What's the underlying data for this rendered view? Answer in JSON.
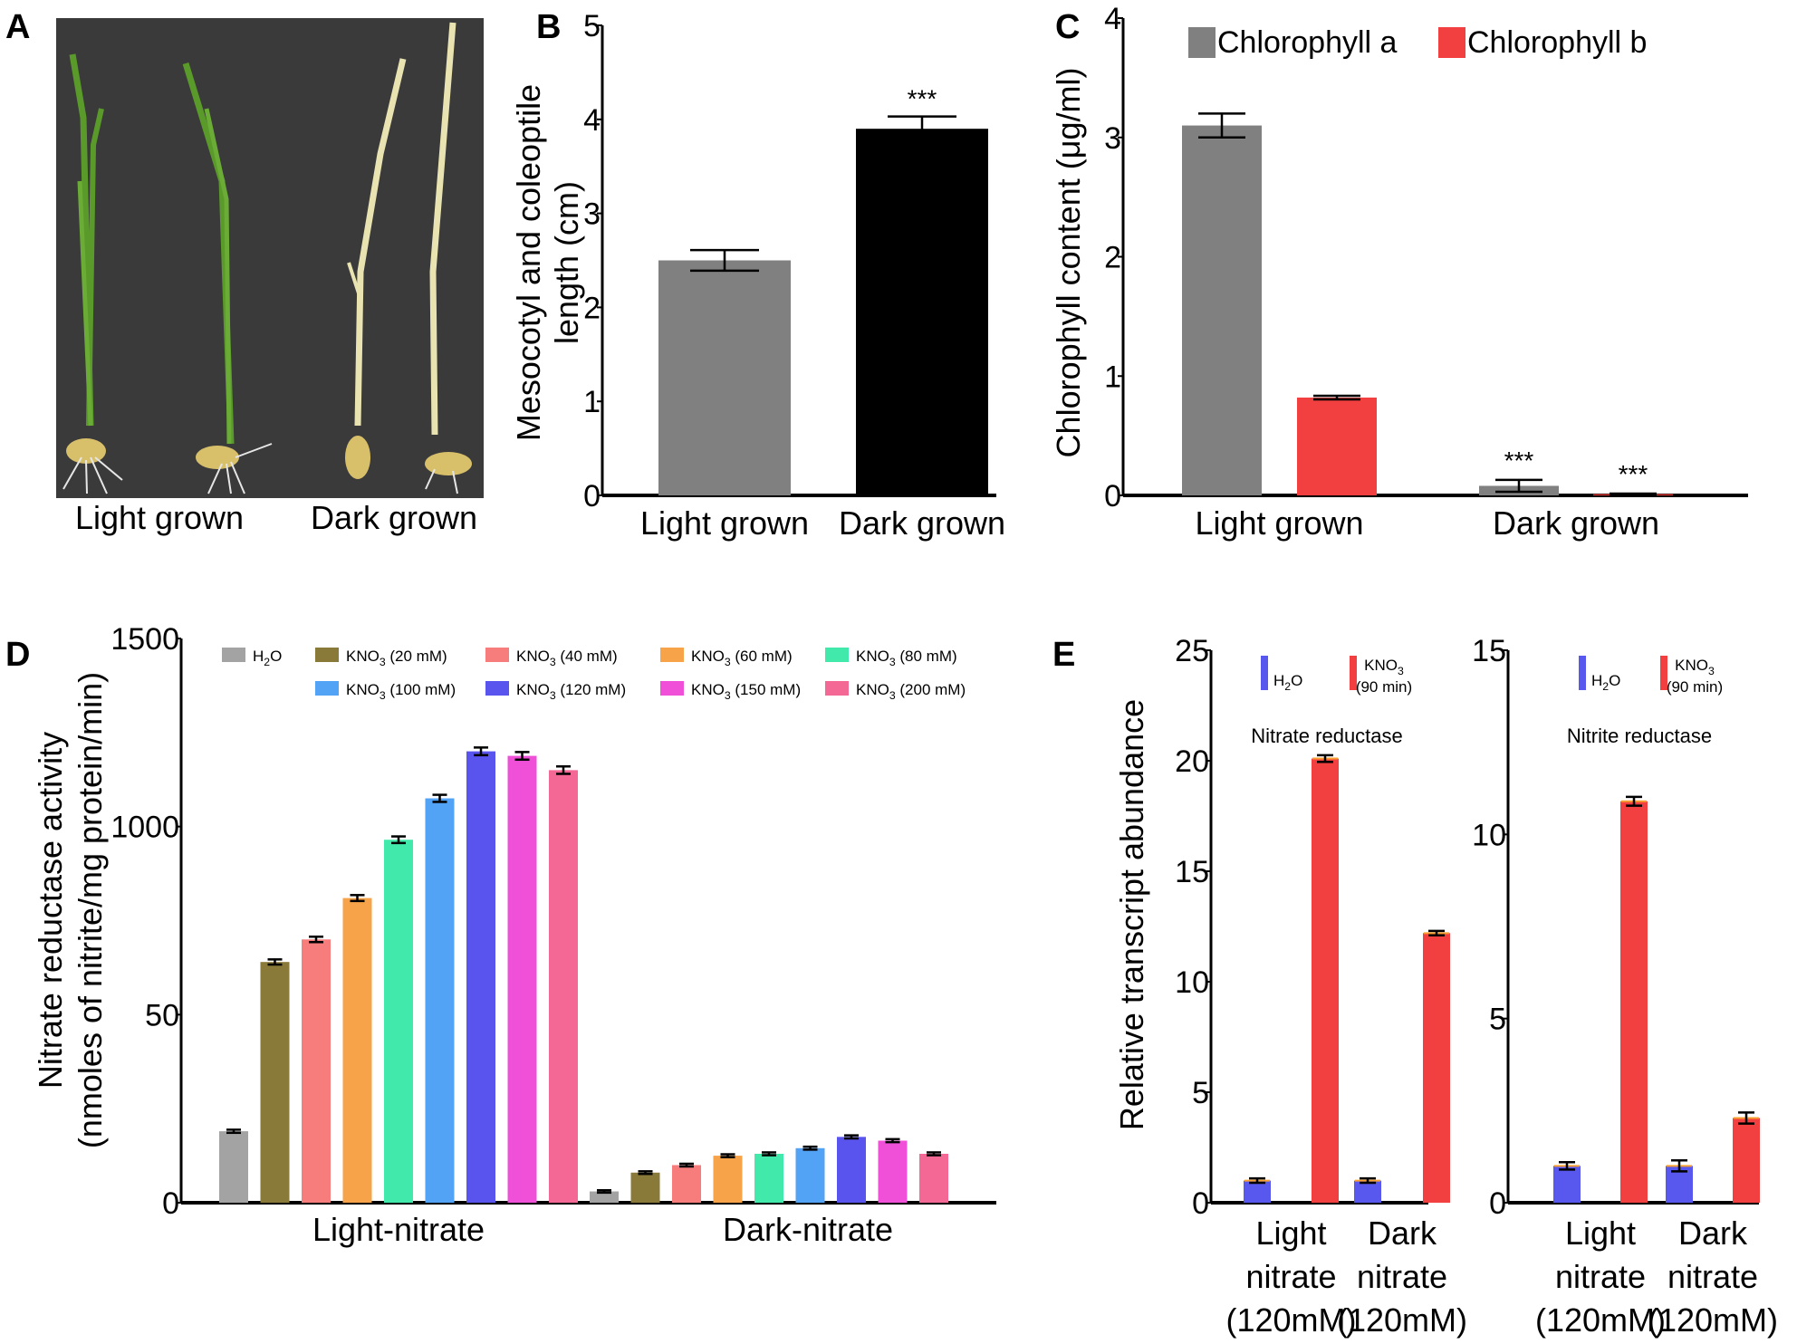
{
  "figure": {
    "panel_letters": [
      "A",
      "B",
      "C",
      "D",
      "E"
    ],
    "photo": {
      "labels": [
        "Light grown",
        "Dark grown"
      ],
      "colors": {
        "background": "#3a3a3a",
        "green_shoot": "#5a9a2a",
        "pale_shoot": "#e8e3b0",
        "seed": "#d8bf6a"
      }
    },
    "colors": {
      "gray": "#808080",
      "black": "#000000",
      "red": "#f23f3f",
      "h2o": "#a3a3a3",
      "kno3_20": "#8a7a3a",
      "kno3_40": "#f77c7c",
      "kno3_60": "#f7a34a",
      "kno3_80": "#41eaaa",
      "kno3_100": "#52a2f5",
      "kno3_120": "#5a54ee",
      "kno3_150": "#f050d8",
      "kno3_200": "#f46896",
      "blue": "#5858ee",
      "orange": "#f7a030"
    }
  },
  "chart_data": [
    {
      "panel": "B",
      "type": "bar",
      "categories": [
        "Light grown",
        "Dark grown"
      ],
      "values": [
        2.5,
        3.9
      ],
      "errors": [
        0.11,
        0.13
      ],
      "colors": [
        "#808080",
        "#000000"
      ],
      "significance": [
        "",
        "***"
      ],
      "ylabel_lines": [
        "Mesocotyl and coleoptile",
        "length (cm)"
      ],
      "ylim": [
        0,
        5
      ],
      "yticks": [
        "0",
        "1",
        "2",
        "3",
        "4",
        "5"
      ]
    },
    {
      "panel": "C",
      "type": "bar",
      "categories": [
        "Light grown",
        "Dark grown"
      ],
      "series": [
        {
          "name": "Chlorophyll a",
          "color": "#808080",
          "values": [
            3.1,
            0.08
          ],
          "errors": [
            0.1,
            0.05
          ],
          "significance": [
            "",
            "***"
          ]
        },
        {
          "name": "Chlorophyll b",
          "color": "#f23f3f",
          "values": [
            0.82,
            0.01
          ],
          "errors": [
            0.015,
            0.005
          ],
          "significance": [
            "",
            "***"
          ]
        }
      ],
      "ylabel": "Chlorophyll content (μg/ml)",
      "ylim": [
        0,
        4
      ],
      "yticks": [
        "0",
        "1",
        "2",
        "3",
        "4"
      ]
    },
    {
      "panel": "D",
      "type": "bar",
      "categories": [
        "Light-nitrate",
        "Dark-nitrate"
      ],
      "series": [
        {
          "name": "H2O",
          "base": "H",
          "sub": "2",
          "rest": "O",
          "color": "#a3a3a3",
          "values": [
            190,
            30
          ]
        },
        {
          "name": "KNO3 (20 mM)",
          "base": "KNO",
          "sub": "3",
          "rest": " (20 mM)",
          "color": "#8a7a3a",
          "values": [
            640,
            80
          ]
        },
        {
          "name": "KNO3 (40 mM)",
          "base": "KNO",
          "sub": "3",
          "rest": " (40 mM)",
          "color": "#f77c7c",
          "values": [
            700,
            100
          ]
        },
        {
          "name": "KNO3 (60 mM)",
          "base": "KNO",
          "sub": "3",
          "rest": " (60 mM)",
          "color": "#f7a34a",
          "values": [
            810,
            125
          ]
        },
        {
          "name": "KNO3 (80 mM)",
          "base": "KNO",
          "sub": "3",
          "rest": " (80 mM)",
          "color": "#41eaaa",
          "values": [
            965,
            130
          ]
        },
        {
          "name": "KNO3 (100 mM)",
          "base": "KNO",
          "sub": "3",
          "rest": " (100 mM)",
          "color": "#52a2f5",
          "values": [
            1075,
            145
          ]
        },
        {
          "name": "KNO3 (120 mM)",
          "base": "KNO",
          "sub": "3",
          "rest": " (120 mM)",
          "color": "#5a54ee",
          "values": [
            1200,
            175
          ]
        },
        {
          "name": "KNO3 (150 mM)",
          "base": "KNO",
          "sub": "3",
          "rest": " (150 mM)",
          "color": "#f050d8",
          "values": [
            1188,
            165
          ]
        },
        {
          "name": "KNO3 (200 mM)",
          "base": "KNO",
          "sub": "3",
          "rest": " (200 mM)",
          "color": "#f46896",
          "values": [
            1150,
            130
          ]
        }
      ],
      "ylabel_lines": [
        "Nitrate reductase activity",
        "(nmoles of nitrite/mg protein/min)"
      ],
      "ylim": [
        0,
        1500
      ],
      "yticks": [
        "0",
        "50",
        "1000",
        "1500"
      ]
    },
    {
      "panel": "E-left",
      "type": "bar",
      "subtitle": "Nitrate reductase",
      "categories": [
        [
          "Light",
          "nitrate",
          "(120mM)"
        ],
        [
          "Dark",
          "nitrate",
          "(120mM)"
        ]
      ],
      "series": [
        {
          "name": "H2O",
          "base": "H",
          "sub": "2",
          "rest": "O",
          "color": "#5858ee",
          "values": [
            1.0,
            1.0
          ],
          "errors": [
            0.1,
            0.1
          ]
        },
        {
          "name": "KNO3 (90 min)",
          "base": "KNO",
          "sub": "3",
          "rest2": "(90 min)",
          "color": "#f23f3f",
          "values": [
            20.1,
            12.2
          ],
          "errors": [
            0.15,
            0.1
          ]
        }
      ],
      "ylabel": "Relative transcript abundance",
      "ylim": [
        0,
        25
      ],
      "yticks": [
        "0",
        "5",
        "10",
        "15",
        "20",
        "25"
      ]
    },
    {
      "panel": "E-right",
      "type": "bar",
      "subtitle": "Nitrite reductase",
      "categories": [
        [
          "Light",
          "nitrate",
          "(120mM)"
        ],
        [
          "Dark",
          "nitrate",
          "(120mM)"
        ]
      ],
      "series": [
        {
          "name": "H2O",
          "base": "H",
          "sub": "2",
          "rest": "O",
          "color": "#5858ee",
          "values": [
            1.0,
            1.0
          ],
          "errors": [
            0.1,
            0.15
          ]
        },
        {
          "name": "KNO3 (90 min)",
          "base": "KNO",
          "sub": "3",
          "rest2": "(90 min)",
          "color": "#f23f3f",
          "values": [
            10.9,
            2.3
          ],
          "errors": [
            0.12,
            0.15
          ]
        }
      ],
      "ylabel": "",
      "ylim": [
        0,
        15
      ],
      "yticks": [
        "0",
        "5",
        "10",
        "15"
      ]
    }
  ]
}
